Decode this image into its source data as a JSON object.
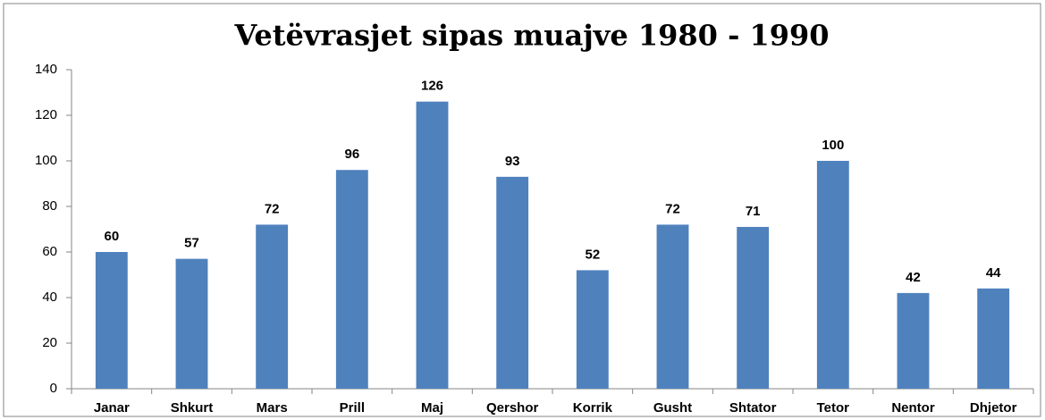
{
  "chart_data": {
    "type": "bar",
    "title": "Vetëvrasjet sipas muajve 1980 - 1990",
    "categories": [
      "Janar",
      "Shkurt",
      "Mars",
      "Prill",
      "Maj",
      "Qershor",
      "Korrik",
      "Gusht",
      "Shtator",
      "Tetor",
      "Nentor",
      "Dhjetor"
    ],
    "values": [
      60,
      57,
      72,
      96,
      126,
      93,
      52,
      72,
      71,
      100,
      42,
      44
    ],
    "color": "#4f81bd",
    "ylim": [
      0,
      140
    ],
    "yticks": [
      0,
      20,
      40,
      60,
      80,
      100,
      120,
      140
    ],
    "grid": false
  }
}
